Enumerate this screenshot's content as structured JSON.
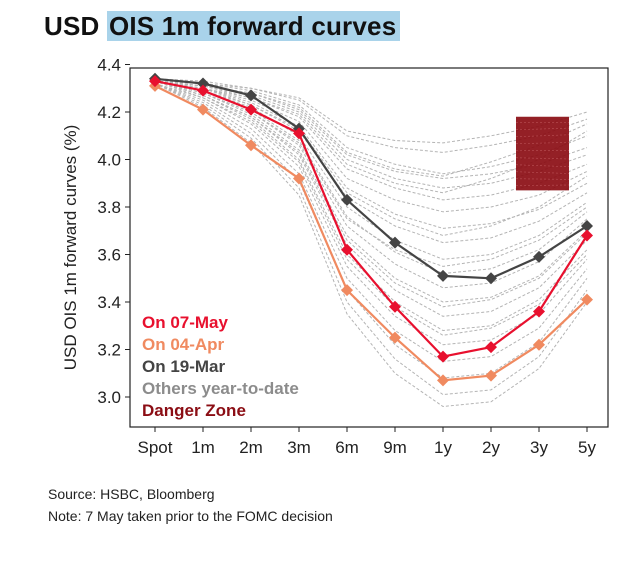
{
  "title": {
    "prefix": "USD",
    "highlight": "OIS 1m forward curves"
  },
  "chart_data": {
    "type": "line",
    "categories": [
      "Spot",
      "1m",
      "2m",
      "3m",
      "6m",
      "9m",
      "1y",
      "2y",
      "3y",
      "5y"
    ],
    "ylabel": "USD OIS 1m forward curves (%)",
    "ylim": [
      2.9,
      4.4
    ],
    "yticks": [
      "3.0",
      "3.2",
      "3.4",
      "3.6",
      "3.8",
      "4.0",
      "4.2",
      "4.4"
    ],
    "series": [
      {
        "name": "On 07-May",
        "color": "#e8102e",
        "marker": "diamond",
        "values": [
          4.33,
          4.29,
          4.21,
          4.11,
          3.62,
          3.38,
          3.17,
          3.21,
          3.36,
          3.68
        ]
      },
      {
        "name": "On 04-Apr",
        "color": "#f08a60",
        "marker": "diamond",
        "values": [
          4.31,
          4.21,
          4.06,
          3.92,
          3.45,
          3.25,
          3.07,
          3.09,
          3.22,
          3.41
        ]
      },
      {
        "name": "On 19-Mar",
        "color": "#444444",
        "marker": "diamond",
        "values": [
          4.34,
          4.32,
          4.27,
          4.13,
          3.83,
          3.65,
          3.51,
          3.5,
          3.59,
          3.72
        ]
      }
    ],
    "background_series": {
      "name": "Others year-to-date",
      "color": "#b4b4b4",
      "curves": [
        [
          4.33,
          4.31,
          4.27,
          4.2,
          4.0,
          3.92,
          3.88,
          3.9,
          3.95,
          4.02
        ],
        [
          4.33,
          4.32,
          4.29,
          4.23,
          4.05,
          3.98,
          3.94,
          3.97,
          4.02,
          4.1
        ],
        [
          4.33,
          4.32,
          4.3,
          4.25,
          4.1,
          4.05,
          4.03,
          4.06,
          4.1,
          4.17
        ],
        [
          4.34,
          4.33,
          4.3,
          4.26,
          4.12,
          4.08,
          4.07,
          4.1,
          4.14,
          4.2
        ],
        [
          4.33,
          4.31,
          4.28,
          4.21,
          4.02,
          3.95,
          3.92,
          3.94,
          3.98,
          4.05
        ],
        [
          4.33,
          4.31,
          4.26,
          4.18,
          3.96,
          3.88,
          3.83,
          3.85,
          3.9,
          3.98
        ],
        [
          4.33,
          4.3,
          4.25,
          4.16,
          3.92,
          3.83,
          3.78,
          3.8,
          3.85,
          3.95
        ],
        [
          4.33,
          4.3,
          4.24,
          4.14,
          3.88,
          3.77,
          3.71,
          3.73,
          3.79,
          3.9
        ],
        [
          4.33,
          4.3,
          4.23,
          4.12,
          3.84,
          3.72,
          3.65,
          3.67,
          3.74,
          3.86
        ],
        [
          4.33,
          4.29,
          4.22,
          4.1,
          3.8,
          3.66,
          3.58,
          3.6,
          3.68,
          3.82
        ],
        [
          4.33,
          4.29,
          4.21,
          4.08,
          3.76,
          3.61,
          3.52,
          3.54,
          3.62,
          3.78
        ],
        [
          4.33,
          4.28,
          4.2,
          4.06,
          3.72,
          3.56,
          3.46,
          3.48,
          3.57,
          3.75
        ],
        [
          4.33,
          4.28,
          4.19,
          4.04,
          3.68,
          3.5,
          3.4,
          3.42,
          3.51,
          3.7
        ],
        [
          4.33,
          4.27,
          4.18,
          4.02,
          3.64,
          3.45,
          3.34,
          3.36,
          3.46,
          3.66
        ],
        [
          4.33,
          4.27,
          4.17,
          4.0,
          3.6,
          3.4,
          3.28,
          3.3,
          3.41,
          3.62
        ],
        [
          4.33,
          4.26,
          4.15,
          3.97,
          3.55,
          3.34,
          3.22,
          3.24,
          3.35,
          3.58
        ],
        [
          4.32,
          4.25,
          4.13,
          3.94,
          3.5,
          3.28,
          3.15,
          3.17,
          3.29,
          3.54
        ],
        [
          4.32,
          4.24,
          4.11,
          3.91,
          3.45,
          3.22,
          3.08,
          3.1,
          3.23,
          3.5
        ],
        [
          4.32,
          4.23,
          4.09,
          3.88,
          3.4,
          3.16,
          3.01,
          3.03,
          3.17,
          3.45
        ],
        [
          4.32,
          4.22,
          4.07,
          3.85,
          3.35,
          3.1,
          2.96,
          2.98,
          3.12,
          3.4
        ],
        [
          4.33,
          4.3,
          4.26,
          4.19,
          3.98,
          3.9,
          3.86,
          3.92,
          4.0,
          4.12
        ],
        [
          4.33,
          4.31,
          4.28,
          4.22,
          4.03,
          3.96,
          3.93,
          3.99,
          4.06,
          4.15
        ],
        [
          4.33,
          4.29,
          4.23,
          4.13,
          3.86,
          3.75,
          3.68,
          3.72,
          3.8,
          3.93
        ],
        [
          4.33,
          4.28,
          4.2,
          4.07,
          3.75,
          3.62,
          3.55,
          3.58,
          3.66,
          3.8
        ],
        [
          4.33,
          4.27,
          4.18,
          4.03,
          3.66,
          3.48,
          3.38,
          3.41,
          3.5,
          3.69
        ],
        [
          4.32,
          4.26,
          4.16,
          3.99,
          3.58,
          3.38,
          3.26,
          3.29,
          3.39,
          3.6
        ]
      ]
    },
    "danger_zone": {
      "name": "Danger Zone",
      "color": "#8b0d14",
      "x_range": [
        "2y",
        "3y"
      ],
      "y_range": [
        3.87,
        4.18
      ]
    },
    "legend": {
      "position": "bottom-left",
      "entries": [
        {
          "label": "On 07-May",
          "color": "#e8102e"
        },
        {
          "label": "On 04-Apr",
          "color": "#f08a60"
        },
        {
          "label": "On 19-Mar",
          "color": "#444444"
        },
        {
          "label": "Others year-to-date",
          "color": "#8c8c8c"
        },
        {
          "label": "Danger Zone",
          "color": "#8b0d14"
        }
      ]
    },
    "grid": false
  },
  "footer": {
    "source": "Source: HSBC, Bloomberg",
    "note": "Note: 7 May taken prior to the FOMC decision"
  }
}
